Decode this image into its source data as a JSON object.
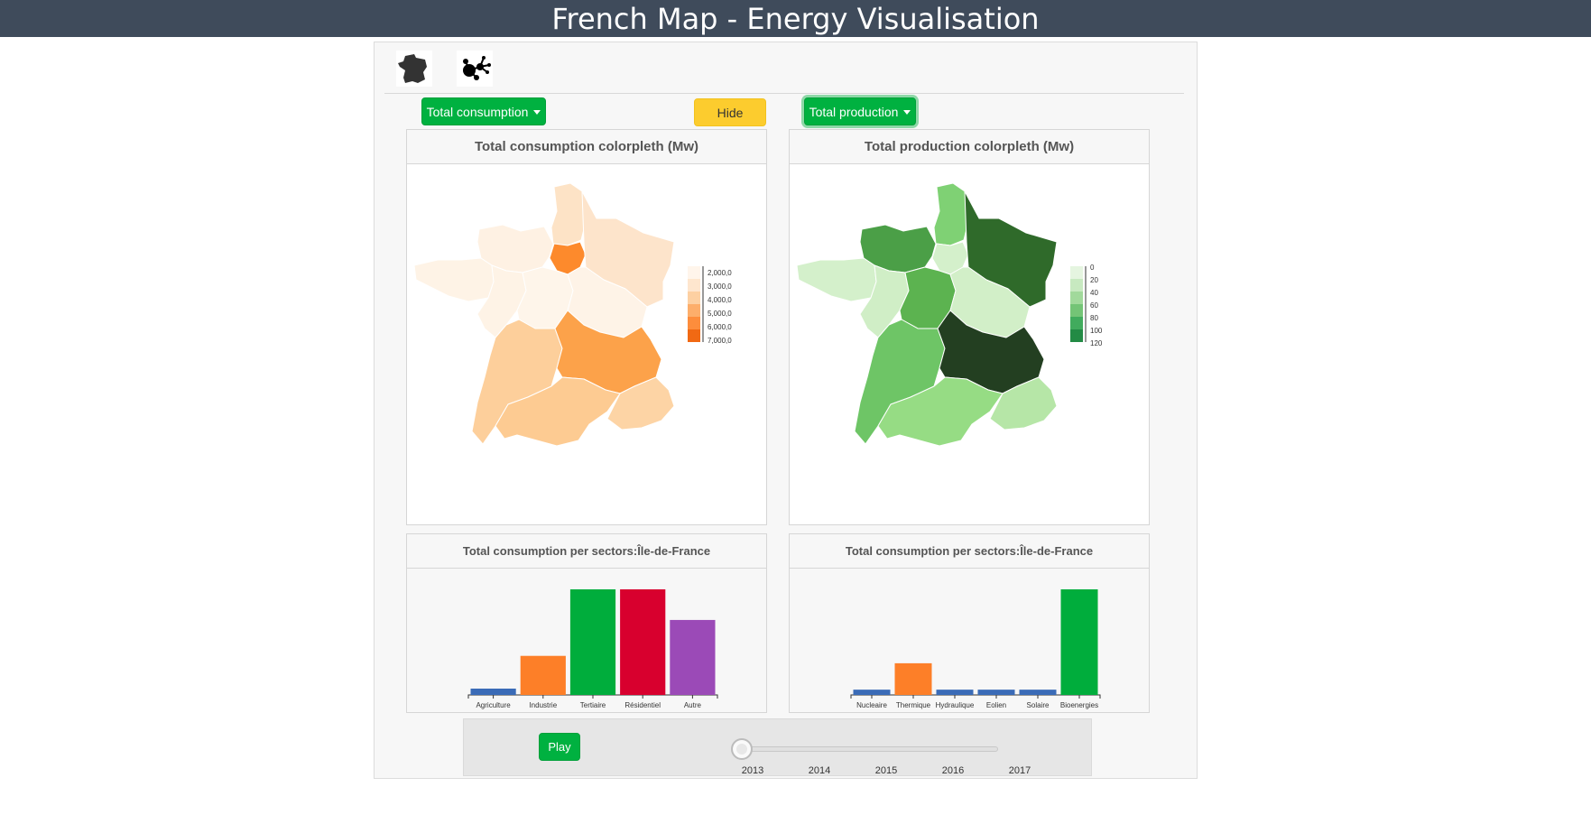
{
  "header": {
    "title": "French Map - Energy Visualisation"
  },
  "toolbar": {
    "icons": [
      "france-map-icon",
      "network-graph-icon"
    ]
  },
  "controls": {
    "consumption_dropdown": "Total consumption",
    "hide_button": "Hide",
    "production_dropdown": "Total production"
  },
  "consumption_map": {
    "title": "Total consumption colorpleth (Mw)",
    "legend": [
      "2,000,0",
      "3,000,0",
      "4,000,0",
      "5,000,0",
      "6,000,0",
      "7,000,0"
    ],
    "colors": [
      "#fff5eb",
      "#fee6ce",
      "#fdd0a2",
      "#fdae6b",
      "#fd8d3c",
      "#f16913"
    ]
  },
  "production_map": {
    "title": "Total production colorpleth (Mw)",
    "legend": [
      "0",
      "20",
      "40",
      "60",
      "80",
      "100",
      "120"
    ],
    "colors": [
      "#e5f5e0",
      "#c7e9c0",
      "#a1d99b",
      "#74c476",
      "#41ab5d",
      "#238b45",
      "#005a32"
    ]
  },
  "consumption_sectors": {
    "title": "Total consumption per sectors:Île-de-France",
    "chart_data": {
      "type": "bar",
      "categories": [
        "Agriculture",
        "Industrie",
        "Tertiaire",
        "Résidentiel",
        "Autre"
      ],
      "values": [
        6,
        37,
        100,
        100,
        71
      ],
      "colors": [
        "#3a6bb7",
        "#fd7f28",
        "#00ad3c",
        "#d8002e",
        "#9b4ab7"
      ],
      "ylim": [
        0,
        100
      ]
    }
  },
  "production_sectors": {
    "title": "Total consumption per sectors:Île-de-France",
    "chart_data": {
      "type": "bar",
      "categories": [
        "Nucleaire",
        "Thermique",
        "Hydraulique",
        "Eolien",
        "Solaire",
        "Bioenergies"
      ],
      "values": [
        5,
        30,
        5,
        5,
        5,
        100
      ],
      "colors": [
        "#3a6bb7",
        "#fd7f28",
        "#3a6bb7",
        "#3a6bb7",
        "#3a6bb7",
        "#00ad3c"
      ],
      "ylim": [
        0,
        100
      ]
    }
  },
  "player": {
    "play_label": "Play",
    "years": [
      "2013",
      "2014",
      "2015",
      "2016",
      "2017"
    ],
    "current_year": "2013"
  }
}
